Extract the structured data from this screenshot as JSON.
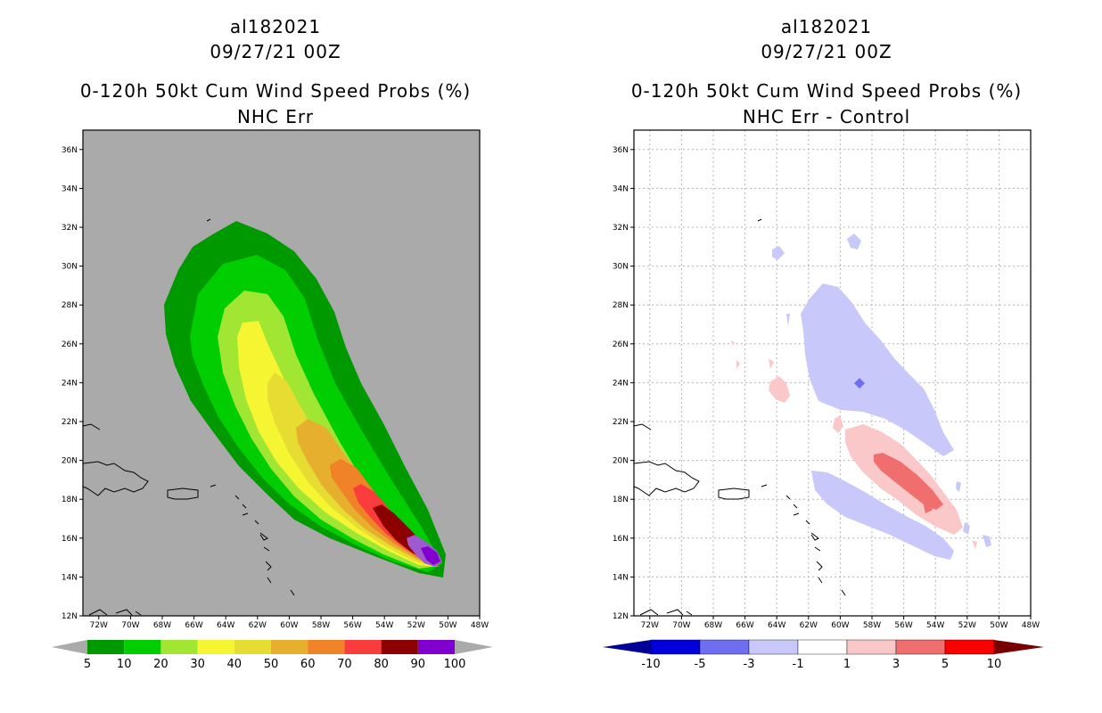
{
  "panels": [
    {
      "storm_id": "al182021",
      "datetime": "09/27/21 00Z",
      "product": "0-120h 50kt Cum Wind Speed Probs (%)",
      "subtitle": "NHC Err",
      "colorbar": {
        "labels": [
          "5",
          "10",
          "20",
          "30",
          "40",
          "50",
          "60",
          "70",
          "80",
          "90",
          "100"
        ],
        "colors": [
          "#009a00",
          "#00ce00",
          "#a0e632",
          "#f5f532",
          "#e6dc32",
          "#e6af2d",
          "#f08228",
          "#fa3c3c",
          "#8c0000",
          "#8000d0"
        ]
      }
    },
    {
      "storm_id": "al182021",
      "datetime": "09/27/21 00Z",
      "product": "0-120h 50kt Cum Wind Speed Probs (%)",
      "subtitle": "NHC Err - Control",
      "colorbar": {
        "labels": [
          "-10",
          "-5",
          "-3",
          "-1",
          "1",
          "3",
          "5",
          "10"
        ],
        "colors": [
          "#0000dc",
          "#6e6ef0",
          "#c8c8fa",
          "#ffffff",
          "#fac8c8",
          "#f06e6e",
          "#fa0000"
        ],
        "end_colors": [
          "#000096",
          "#780000"
        ]
      }
    }
  ],
  "map": {
    "lat_labels": [
      "36N",
      "34N",
      "32N",
      "30N",
      "28N",
      "26N",
      "24N",
      "22N",
      "20N",
      "18N",
      "16N",
      "14N",
      "12N"
    ],
    "lon_labels": [
      "72W",
      "70W",
      "68W",
      "66W",
      "64W",
      "62W",
      "60W",
      "58W",
      "56W",
      "54W",
      "52W",
      "50W",
      "48W"
    ],
    "background_left": "#aaaaaa",
    "background_right": "#ffffff"
  }
}
